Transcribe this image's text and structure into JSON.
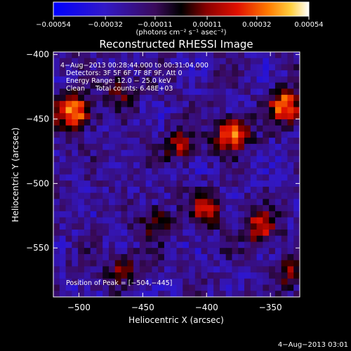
{
  "chart_data": {
    "type": "heatmap",
    "title": "Reconstructed RHESSI Image",
    "xlabel": "Heliocentric X (arcsec)",
    "ylabel": "Heliocentric Y (arcsec)",
    "xlim": [
      -520,
      -327
    ],
    "ylim": [
      -588,
      -398
    ],
    "x_ticks": [
      -500,
      -450,
      -400,
      -350
    ],
    "x_tick_labels": [
      "−500",
      "−450",
      "−400",
      "−350"
    ],
    "y_ticks": [
      -400,
      -450,
      -500,
      -550
    ],
    "y_tick_labels": [
      "−400",
      "−450",
      "−500",
      "−550"
    ],
    "colorbar": {
      "range": [
        -0.00054,
        0.00054
      ],
      "ticks": [
        -0.00054,
        -0.00032,
        -0.00011,
        0.00011,
        0.00032,
        0.00054
      ],
      "tick_labels": [
        "−0.00054",
        "−0.00032",
        "−0.00011",
        "0.00011",
        "0.00032",
        "0.00054"
      ],
      "units_label": "(photons cm⁻² s⁻¹ asec⁻²)"
    },
    "annotations": {
      "time_range": "4−Aug−2013 00:28:44.000 to 00:31:04.000",
      "detectors": "Detectors: 3F 5F 6F 7F 8F 9F, Att 0",
      "energy_range": "Energy Range: 12.0 − 25.0 keV",
      "method_counts": "Clean     Total counts: 6.48E+03",
      "peak": "Position of Peak = [−504,−445]"
    },
    "peak_position": [
      -504,
      -445
    ],
    "bright_sources": [
      {
        "x": -504,
        "y": -445,
        "intensity": 0.00054
      },
      {
        "x": -338,
        "y": -440,
        "intensity": 0.00048
      },
      {
        "x": -380,
        "y": -462,
        "intensity": 0.00046
      },
      {
        "x": -358,
        "y": -535,
        "intensity": 0.00036
      },
      {
        "x": -400,
        "y": -520,
        "intensity": 0.0003
      },
      {
        "x": -420,
        "y": -470,
        "intensity": 0.00028
      },
      {
        "x": -440,
        "y": -530,
        "intensity": 0.00024
      },
      {
        "x": -465,
        "y": -565,
        "intensity": 0.00024
      },
      {
        "x": -335,
        "y": -570,
        "intensity": 0.00022
      },
      {
        "x": -468,
        "y": -428,
        "intensity": 0.0002
      }
    ]
  },
  "footer": {
    "timestamp": "4−Aug−2013 03:01"
  }
}
